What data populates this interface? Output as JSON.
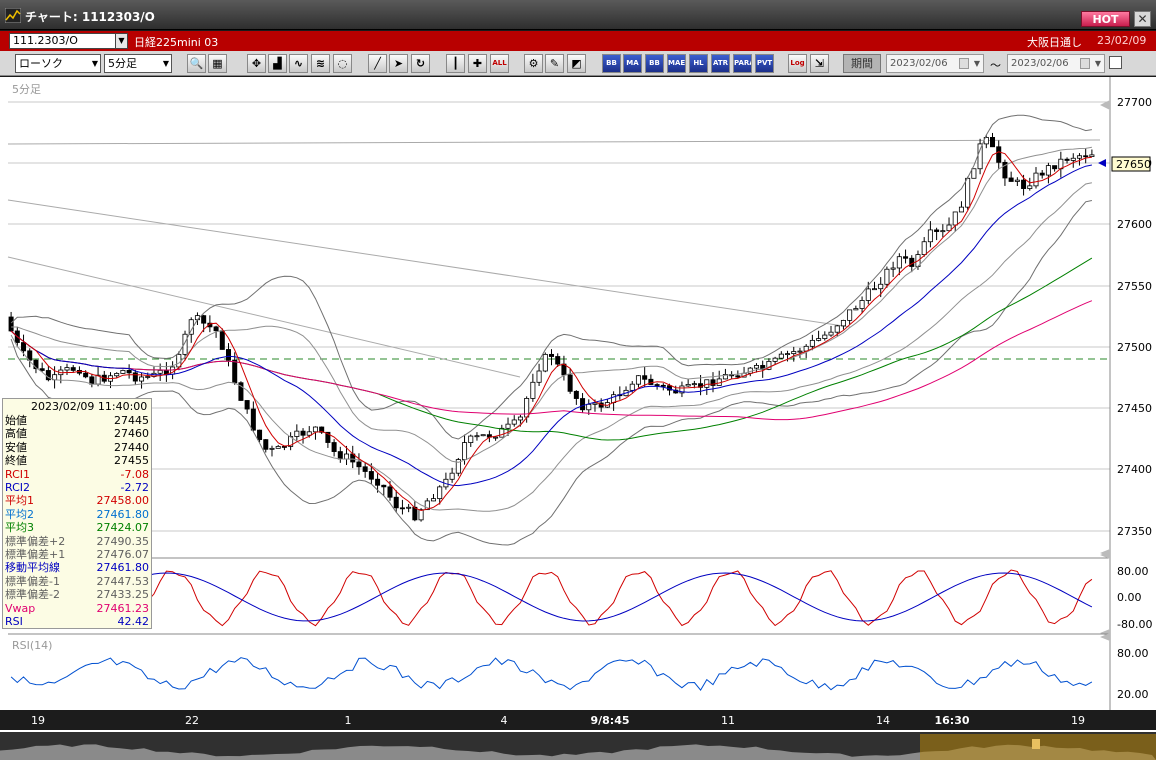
{
  "window": {
    "title": "チャート: 1112303/O",
    "hot_label": "HOT",
    "close_label": "✕",
    "icon": "chart-app-icon"
  },
  "info": {
    "code": "111.2303/O",
    "name": "日経225mini 03",
    "market": "大阪日通し",
    "date": "23/02/09"
  },
  "toolbar": {
    "chart_type": "ローソク",
    "interval": "5分足",
    "buttons": [
      "zoom-icon",
      "grid-icon",
      "cursor-icon",
      "indicator-icon",
      "ma-icon",
      "bollinger-icon",
      "disabled-icon",
      "draw-line-icon",
      "pointer-icon",
      "rotate-icon",
      "candle-icon",
      "cross-icon",
      "all-icon",
      "settings-icon",
      "brush-icon",
      "color-icon",
      "BB",
      "MA",
      "BB",
      "MAE",
      "HL",
      "ATR",
      "PARA",
      "PVT",
      "Log",
      "export-icon"
    ],
    "period_label": "期間",
    "date_from": "2023/02/06",
    "date_to": "2023/02/06",
    "tilde": "〜"
  },
  "chart": {
    "interval_label": "5分足",
    "price_ticks": [
      "27700",
      "27650",
      "27600",
      "27550",
      "27500",
      "27450",
      "27400",
      "27350"
    ],
    "current_price": "27650",
    "osc_ticks": [
      "80.00",
      "0.00",
      "-80.00"
    ],
    "rsi_label": "RSI(14)",
    "rsi_ticks": [
      "80.00",
      "20.00"
    ],
    "x_labels": [
      "19",
      "22",
      "1",
      "4",
      "9/8:45",
      "11",
      "14",
      "16:30",
      "19"
    ]
  },
  "datapanel": {
    "datetime": "2023/02/09  11:40:00",
    "rows": [
      {
        "label": "始値",
        "value": "27445",
        "color": "#000000"
      },
      {
        "label": "高値",
        "value": "27460",
        "color": "#000000"
      },
      {
        "label": "安値",
        "value": "27440",
        "color": "#000000"
      },
      {
        "label": "終値",
        "value": "27455",
        "color": "#000000"
      },
      {
        "label": "RCI1",
        "value": "-7.08",
        "color": "#d00000"
      },
      {
        "label": "RCI2",
        "value": "-2.72",
        "color": "#0000c0"
      },
      {
        "label": "平均1",
        "value": "27458.00",
        "color": "#d00000"
      },
      {
        "label": "平均2",
        "value": "27461.80",
        "color": "#0070d0"
      },
      {
        "label": "平均3",
        "value": "27424.07",
        "color": "#008000"
      },
      {
        "label": "標準偏差+2",
        "value": "27490.35",
        "color": "#606060"
      },
      {
        "label": "標準偏差+1",
        "value": "27476.07",
        "color": "#606060"
      },
      {
        "label": "移動平均線",
        "value": "27461.80",
        "color": "#0000c0"
      },
      {
        "label": "標準偏差-1",
        "value": "27447.53",
        "color": "#606060"
      },
      {
        "label": "標準偏差-2",
        "value": "27433.25",
        "color": "#606060"
      },
      {
        "label": "Vwap",
        "value": "27461.23",
        "color": "#e00070"
      },
      {
        "label": "RSI",
        "value": "42.42",
        "color": "#0000c0"
      }
    ]
  },
  "colors": {
    "title_bg": "#3a3a3a",
    "info_bg": "#b80000",
    "hot": "#e0305a",
    "panel_bg": "#fcfce4"
  }
}
